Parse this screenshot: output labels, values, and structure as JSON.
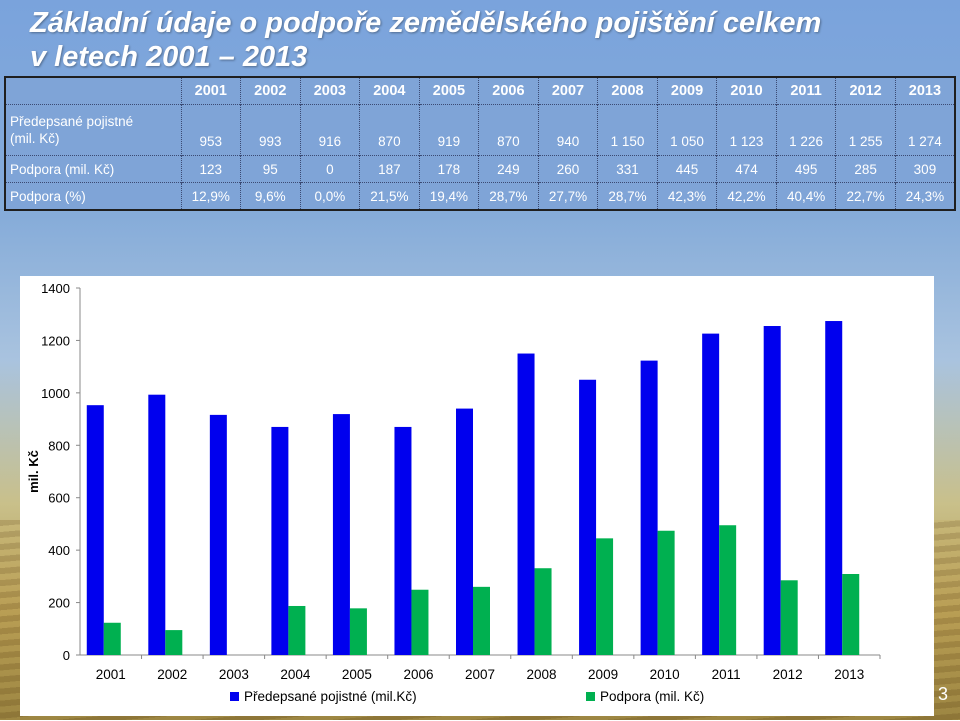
{
  "title": {
    "line1": "Základní údaje o podpoře zemědělského pojištění celkem",
    "line2": "v letech 2001 – 2013"
  },
  "table": {
    "years": [
      "2001",
      "2002",
      "2003",
      "2004",
      "2005",
      "2006",
      "2007",
      "2008",
      "2009",
      "2010",
      "2011",
      "2012",
      "2013"
    ],
    "rows": [
      {
        "label_a": "Předepsané pojistné",
        "label_b": "(mil. Kč)",
        "cells": [
          "953",
          "993",
          "916",
          "870",
          "919",
          "870",
          "940",
          "1 150",
          "1 050",
          "1 123",
          "1 226",
          "1 255",
          "1 274"
        ]
      },
      {
        "label_a": "Podpora (mil. Kč)",
        "label_b": "",
        "cells": [
          "123",
          "95",
          "0",
          "187",
          "178",
          "249",
          "260",
          "331",
          "445",
          "474",
          "495",
          "285",
          "309"
        ]
      },
      {
        "label_a": "Podpora (%)",
        "label_b": "",
        "cells": [
          "12,9%",
          "9,6%",
          "0,0%",
          "21,5%",
          "19,4%",
          "28,7%",
          "27,7%",
          "28,7%",
          "42,3%",
          "42,2%",
          "40,4%",
          "22,7%",
          "24,3%"
        ]
      }
    ]
  },
  "chart_data": {
    "type": "bar",
    "categories": [
      "2001",
      "2002",
      "2003",
      "2004",
      "2005",
      "2006",
      "2007",
      "2008",
      "2009",
      "2010",
      "2011",
      "2012",
      "2013"
    ],
    "series": [
      {
        "name": "Předepsané pojistné (mil.Kč)",
        "color": "#0000ee",
        "values": [
          953,
          993,
          916,
          870,
          919,
          870,
          940,
          1150,
          1050,
          1123,
          1226,
          1255,
          1274
        ]
      },
      {
        "name": "Podpora (mil. Kč)",
        "color": "#00b050",
        "values": [
          123,
          95,
          0,
          187,
          178,
          249,
          260,
          331,
          445,
          474,
          495,
          285,
          309
        ]
      }
    ],
    "ylabel": "mil. Kč",
    "ylim": [
      0,
      1400
    ],
    "yticks": [
      0,
      200,
      400,
      600,
      800,
      1000,
      1200,
      1400
    ],
    "grid": false,
    "legend_position": "bottom"
  },
  "slide_number": "3"
}
